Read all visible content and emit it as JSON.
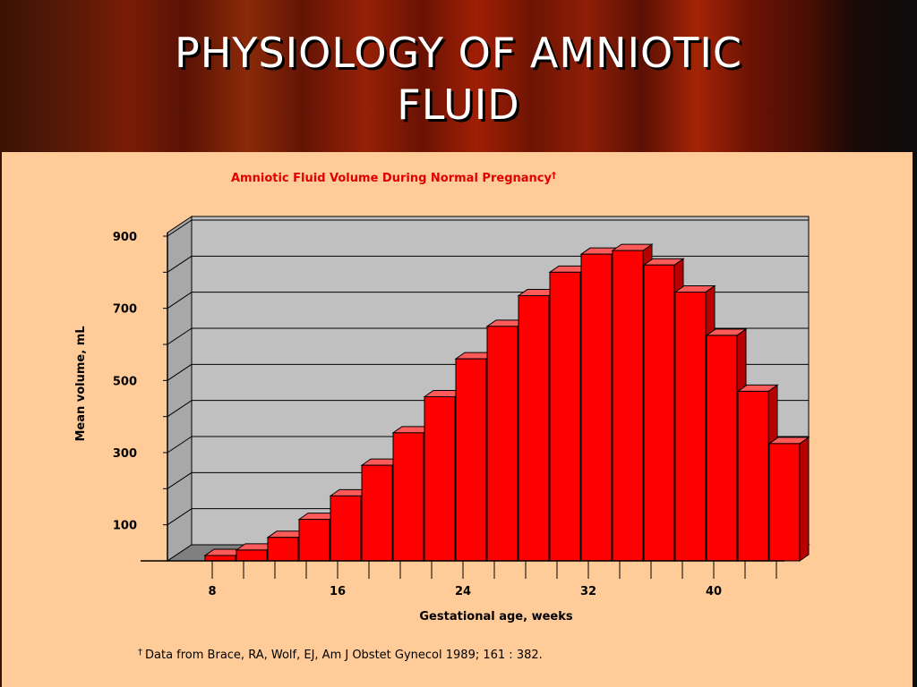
{
  "slide": {
    "title_line1": "PHYSIOLOGY OF AMNIOTIC",
    "title_line2": "FLUID"
  },
  "colors": {
    "bar_front": "#ff0000",
    "bar_top": "#ff5a5a",
    "bar_side": "#b80000",
    "plot_background": "#c0c0c0",
    "panel_background": "#ffcc99",
    "chart_title": "#e00000"
  },
  "chart_data": {
    "type": "bar",
    "title": "Amniotic Fluid Volume During Normal Pregnancy",
    "title_mark": "†",
    "xlabel": "Gestational age, weeks",
    "ylabel": "Mean volume, mL",
    "ylim": [
      0,
      900
    ],
    "y_ticks": [
      100,
      200,
      300,
      400,
      500,
      600,
      700,
      800,
      900
    ],
    "y_tick_labels": [
      "100",
      "300",
      "500",
      "700",
      "900"
    ],
    "x_tick_labels": [
      "8",
      "16",
      "24",
      "32",
      "40"
    ],
    "categories": [
      8,
      10,
      12,
      14,
      16,
      18,
      20,
      22,
      24,
      26,
      28,
      30,
      32,
      34,
      36,
      38,
      40,
      42,
      44
    ],
    "values": [
      15,
      30,
      65,
      115,
      180,
      265,
      355,
      455,
      560,
      650,
      735,
      800,
      850,
      860,
      820,
      745,
      625,
      470,
      325
    ],
    "grid": true,
    "style": "3d",
    "footnote_mark": "†",
    "footnote": "Data from Brace, RA, Wolf, EJ, Am J Obstet Gynecol 1989; 161 : 382."
  }
}
